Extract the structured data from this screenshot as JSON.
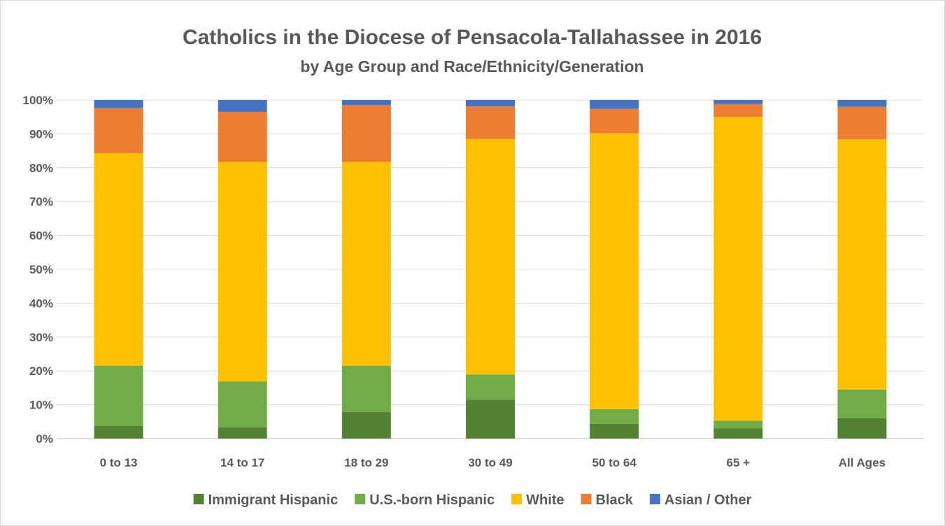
{
  "chart_data": {
    "type": "bar",
    "stacked": true,
    "title": "Catholics in the Diocese of Pensacola-Tallahassee in 2016",
    "subtitle": "by Age Group and Race/Ethnicity/Generation",
    "categories": [
      "0 to 13",
      "14 to 17",
      "18 to 29",
      "30 to 49",
      "50 to 64",
      "65 +",
      "All Ages"
    ],
    "y_ticks": [
      "0%",
      "10%",
      "20%",
      "30%",
      "40%",
      "50%",
      "60%",
      "70%",
      "80%",
      "90%",
      "100%"
    ],
    "ylim": [
      0,
      100
    ],
    "grid": true,
    "legend_position": "bottom",
    "series": [
      {
        "name": "Immigrant Hispanic",
        "color": "#548235",
        "values": [
          3.8,
          3.2,
          7.9,
          11.5,
          4.4,
          3.0,
          6.0
        ]
      },
      {
        "name": "U.S.-born Hispanic",
        "color": "#70AD47",
        "values": [
          17.7,
          13.7,
          13.6,
          7.4,
          4.3,
          2.3,
          8.5
        ]
      },
      {
        "name": "White",
        "color": "#FFC000",
        "values": [
          62.8,
          64.8,
          60.2,
          69.6,
          81.5,
          89.7,
          73.9
        ]
      },
      {
        "name": "Black",
        "color": "#ED7D31",
        "values": [
          13.3,
          14.8,
          16.8,
          9.6,
          7.2,
          3.8,
          9.6
        ]
      },
      {
        "name": "Asian / Other",
        "color": "#4472C4",
        "values": [
          2.4,
          3.5,
          1.5,
          1.9,
          2.6,
          1.2,
          2.0
        ]
      }
    ]
  }
}
